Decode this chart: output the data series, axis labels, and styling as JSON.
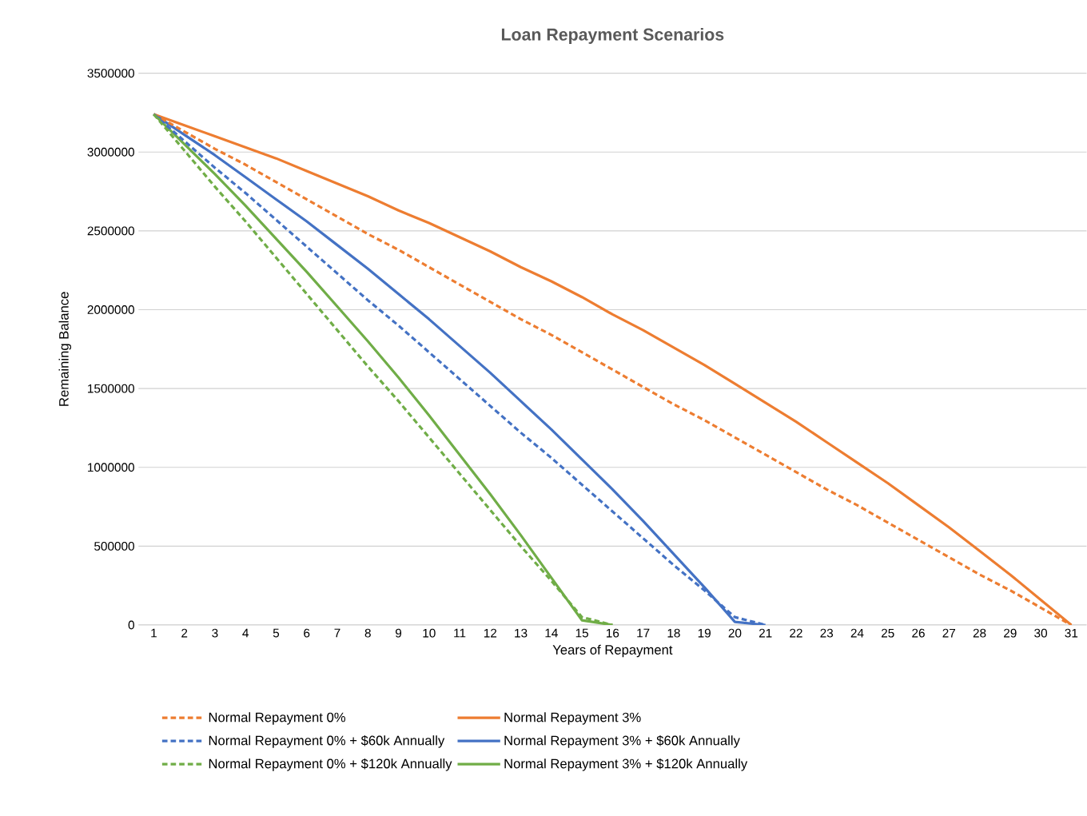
{
  "chart_data": {
    "type": "line",
    "title": "Loan Repayment Scenarios",
    "xlabel": "Years of Repayment",
    "ylabel": "Remaining Balance",
    "categories": [
      "1",
      "2",
      "3",
      "4",
      "5",
      "6",
      "7",
      "8",
      "9",
      "10",
      "11",
      "12",
      "13",
      "14",
      "15",
      "16",
      "17",
      "18",
      "19",
      "20",
      "21",
      "22",
      "23",
      "24",
      "25",
      "26",
      "27",
      "28",
      "29",
      "30",
      "31"
    ],
    "ylim": [
      0,
      3500000
    ],
    "yticks": [
      0,
      500000,
      1000000,
      1500000,
      2000000,
      2500000,
      3000000,
      3500000
    ],
    "grid": "y",
    "legend": "bottom",
    "marker": "none",
    "series": [
      {
        "name": "Normal Repayment 0%",
        "color": "#ed7d31",
        "line_style": "dashed",
        "values": [
          3240000,
          3130000,
          3020000,
          2920000,
          2810000,
          2700000,
          2590000,
          2480000,
          2380000,
          2270000,
          2160000,
          2050000,
          1940000,
          1840000,
          1730000,
          1620000,
          1510000,
          1400000,
          1300000,
          1190000,
          1080000,
          970000,
          860000,
          760000,
          650000,
          540000,
          430000,
          320000,
          220000,
          110000,
          0
        ]
      },
      {
        "name": "Normal Repayment 3%",
        "color": "#ed7d31",
        "line_style": "solid",
        "values": [
          3240000,
          3170000,
          3100000,
          3030000,
          2960000,
          2880000,
          2800000,
          2720000,
          2630000,
          2550000,
          2460000,
          2370000,
          2270000,
          2180000,
          2080000,
          1970000,
          1870000,
          1760000,
          1650000,
          1530000,
          1410000,
          1290000,
          1160000,
          1030000,
          900000,
          760000,
          620000,
          470000,
          320000,
          160000,
          0
        ]
      },
      {
        "name": "Normal Repayment 0% + $60k Annually",
        "color": "#4472c4",
        "line_style": "dashed",
        "values": [
          3240000,
          3070000,
          2900000,
          2740000,
          2570000,
          2400000,
          2230000,
          2060000,
          1900000,
          1730000,
          1560000,
          1390000,
          1220000,
          1060000,
          890000,
          720000,
          550000,
          380000,
          220000,
          50000,
          0,
          null,
          null,
          null,
          null,
          null,
          null,
          null,
          null,
          null,
          null
        ]
      },
      {
        "name": "Normal Repayment 3% + $60k Annually",
        "color": "#4472c4",
        "line_style": "solid",
        "values": [
          3240000,
          3110000,
          2980000,
          2840000,
          2700000,
          2560000,
          2410000,
          2260000,
          2100000,
          1940000,
          1770000,
          1600000,
          1420000,
          1240000,
          1050000,
          860000,
          660000,
          450000,
          240000,
          20000,
          0,
          null,
          null,
          null,
          null,
          null,
          null,
          null,
          null,
          null,
          null
        ]
      },
      {
        "name": "Normal Repayment 0% + $120k Annually",
        "color": "#70ad47",
        "line_style": "dashed",
        "values": [
          3240000,
          3010000,
          2780000,
          2560000,
          2330000,
          2100000,
          1870000,
          1640000,
          1420000,
          1190000,
          960000,
          730000,
          500000,
          280000,
          50000,
          0,
          null,
          null,
          null,
          null,
          null,
          null,
          null,
          null,
          null,
          null,
          null,
          null,
          null,
          null,
          null
        ]
      },
      {
        "name": "Normal Repayment 3% + $120k Annually",
        "color": "#70ad47",
        "line_style": "solid",
        "values": [
          3240000,
          3050000,
          2860000,
          2660000,
          2450000,
          2240000,
          2020000,
          1800000,
          1570000,
          1330000,
          1080000,
          830000,
          570000,
          300000,
          30000,
          0,
          null,
          null,
          null,
          null,
          null,
          null,
          null,
          null,
          null,
          null,
          null,
          null,
          null,
          null,
          null
        ]
      }
    ]
  }
}
